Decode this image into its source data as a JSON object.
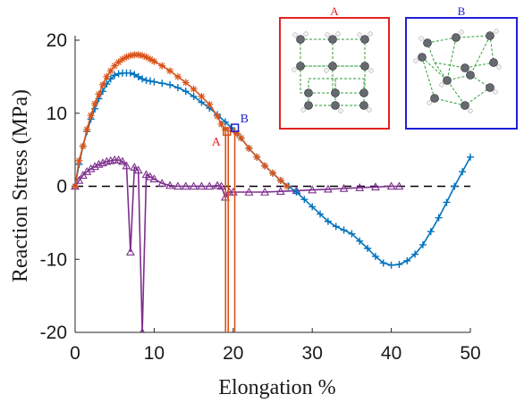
{
  "chart_data": {
    "type": "line",
    "xlabel": "Elongation %",
    "ylabel": "Reaction Stress (MPa)",
    "xlim": [
      0,
      50
    ],
    "ylim": [
      -20,
      20
    ],
    "x_ticks": [
      "0",
      "10",
      "20",
      "30",
      "40",
      "50"
    ],
    "y_ticks": [
      "-20",
      "-10",
      "0",
      "10",
      "20"
    ],
    "grid": false,
    "reference_line": {
      "y": 0,
      "style": "dashed",
      "color": "#000000"
    },
    "series": [
      {
        "color": "#0072BD",
        "marker": "plus",
        "points": [
          [
            0,
            0
          ],
          [
            0.5,
            3
          ],
          [
            1,
            5.5
          ],
          [
            1.5,
            7.5
          ],
          [
            2,
            9.2
          ],
          [
            2.5,
            10.6
          ],
          [
            3,
            12
          ],
          [
            3.5,
            13
          ],
          [
            4,
            14
          ],
          [
            4.5,
            14.7
          ],
          [
            5,
            15.2
          ],
          [
            5.5,
            15.4
          ],
          [
            6,
            15.5
          ],
          [
            6.5,
            15.5
          ],
          [
            7,
            15.5
          ],
          [
            7.5,
            15.3
          ],
          [
            8,
            15
          ],
          [
            8.5,
            14.7
          ],
          [
            9,
            14.5
          ],
          [
            9.5,
            14.4
          ],
          [
            10,
            14.3
          ],
          [
            11,
            14.1
          ],
          [
            12,
            13.9
          ],
          [
            13,
            13.5
          ],
          [
            14,
            13
          ],
          [
            15,
            12.3
          ],
          [
            16,
            11.5
          ],
          [
            17,
            10.7
          ],
          [
            18,
            9.8
          ],
          [
            19,
            8.8
          ],
          [
            19.8,
            8
          ],
          [
            20.5,
            7.2
          ],
          [
            21,
            6.6
          ],
          [
            22,
            5.2
          ],
          [
            23,
            4
          ],
          [
            24,
            2.8
          ],
          [
            25,
            1.8
          ],
          [
            26,
            0.8
          ],
          [
            27,
            0
          ],
          [
            28,
            -0.8
          ],
          [
            29,
            -1.8
          ],
          [
            30,
            -2.8
          ],
          [
            31,
            -3.8
          ],
          [
            32,
            -4.8
          ],
          [
            33,
            -5.5
          ],
          [
            34,
            -6
          ],
          [
            35,
            -6.5
          ],
          [
            36,
            -7.5
          ],
          [
            37,
            -8.5
          ],
          [
            38,
            -9.6
          ],
          [
            39,
            -10.5
          ],
          [
            40,
            -10.8
          ],
          [
            41,
            -10.7
          ],
          [
            42,
            -10.2
          ],
          [
            43,
            -9.3
          ],
          [
            44,
            -8
          ],
          [
            45,
            -6.2
          ],
          [
            46,
            -4.3
          ],
          [
            47,
            -2.2
          ],
          [
            48,
            0
          ],
          [
            49,
            2
          ],
          [
            50,
            4
          ]
        ]
      },
      {
        "color": "#D95319",
        "marker": "asterisk",
        "points": [
          [
            0,
            0
          ],
          [
            0.5,
            3.5
          ],
          [
            1,
            5.5
          ],
          [
            1.5,
            7.8
          ],
          [
            2,
            9.7
          ],
          [
            2.5,
            11.3
          ],
          [
            3,
            12.6
          ],
          [
            3.5,
            13.9
          ],
          [
            4,
            15
          ],
          [
            4.5,
            15.8
          ],
          [
            5,
            16.5
          ],
          [
            5.5,
            17
          ],
          [
            6,
            17.4
          ],
          [
            6.5,
            17.7
          ],
          [
            7,
            17.9
          ],
          [
            7.5,
            18
          ],
          [
            8,
            18
          ],
          [
            8.5,
            17.9
          ],
          [
            9,
            17.7
          ],
          [
            9.5,
            17.4
          ],
          [
            10,
            17.1
          ],
          [
            11,
            16.5
          ],
          [
            12,
            15.8
          ],
          [
            13,
            15
          ],
          [
            14,
            14.2
          ],
          [
            15,
            13.3
          ],
          [
            16,
            12.3
          ],
          [
            17,
            11.2
          ],
          [
            18,
            9.6
          ],
          [
            18.5,
            8.5
          ],
          [
            19,
            7.8
          ],
          [
            20.5,
            7.2
          ],
          [
            21,
            6.6
          ],
          [
            22,
            5.2
          ],
          [
            23,
            4
          ],
          [
            24,
            2.8
          ],
          [
            25,
            1.8
          ],
          [
            26,
            0.8
          ],
          [
            26.8,
            0
          ]
        ]
      },
      {
        "color": "#7E2F8E",
        "marker": "triangle",
        "points": [
          [
            0,
            0
          ],
          [
            0.5,
            0.8
          ],
          [
            1,
            1.5
          ],
          [
            1.5,
            2
          ],
          [
            2,
            2.4
          ],
          [
            2.5,
            2.7
          ],
          [
            3,
            3
          ],
          [
            3.5,
            3.2
          ],
          [
            4,
            3.4
          ],
          [
            4.5,
            3.5
          ],
          [
            5,
            3.6
          ],
          [
            5.5,
            3.6
          ],
          [
            6,
            3.4
          ],
          [
            6.5,
            2.8
          ],
          [
            7,
            -9
          ],
          [
            7.5,
            2.6
          ],
          [
            8,
            2.2
          ],
          [
            8.5,
            -20
          ],
          [
            9,
            1.6
          ],
          [
            9.5,
            1.3
          ],
          [
            10,
            1
          ],
          [
            11,
            0.4
          ],
          [
            12,
            0.1
          ],
          [
            13,
            0
          ],
          [
            14,
            0
          ],
          [
            15,
            0
          ],
          [
            16,
            0
          ],
          [
            17,
            0
          ],
          [
            18,
            0.1
          ],
          [
            18.5,
            0
          ],
          [
            19,
            -1.5
          ],
          [
            19.5,
            -0.8
          ],
          [
            20,
            -0.8
          ],
          [
            22,
            -0.8
          ],
          [
            24,
            -0.8
          ],
          [
            26,
            -0.7
          ],
          [
            28,
            -0.6
          ],
          [
            30,
            -0.5
          ],
          [
            32,
            -0.4
          ],
          [
            34,
            -0.3
          ],
          [
            36,
            -0.2
          ],
          [
            38,
            -0.1
          ],
          [
            40,
            0
          ],
          [
            41,
            0
          ]
        ]
      }
    ],
    "markers": {
      "A": {
        "label": "A",
        "x": 19.2,
        "y": 7.5,
        "color": "#D95319",
        "label_color": "#E8222B"
      },
      "B": {
        "label": "B",
        "x": 20.2,
        "y": 8.0,
        "color": "#1F22CC",
        "label_color": "#1F22CC"
      }
    },
    "insets": [
      {
        "title": "A",
        "border_color": "#E32221"
      },
      {
        "title": "B",
        "border_color": "#1F1FD6"
      }
    ]
  }
}
